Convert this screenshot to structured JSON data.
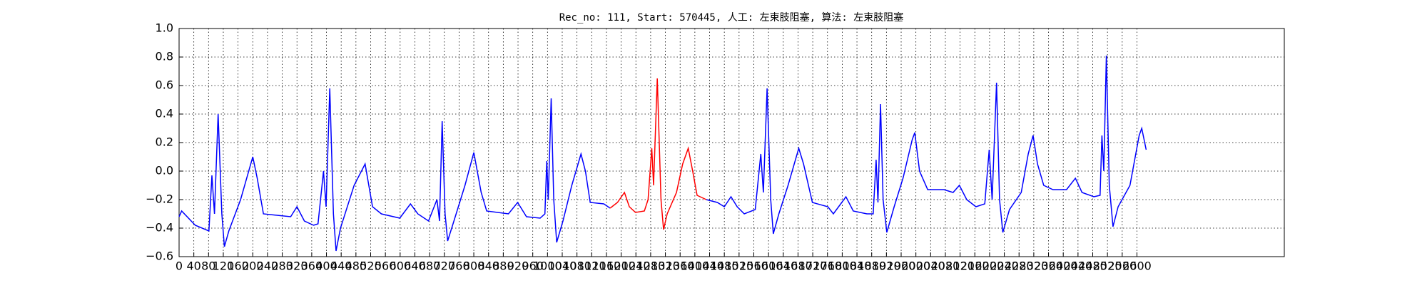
{
  "chart_data": {
    "type": "line",
    "title": "Rec_no: 111, Start: 570445, 人工: 左束肢阻塞, 算法: 左束肢阻塞",
    "xlim": [
      0,
      3000
    ],
    "ylim": [
      -0.6,
      1.0
    ],
    "xticks": [
      0,
      40,
      80,
      120,
      160,
      200,
      240,
      280,
      320,
      360,
      400,
      440,
      480,
      520,
      560,
      600,
      640,
      680,
      720,
      760,
      800,
      840,
      880,
      920,
      960,
      1000,
      1040,
      1080,
      1120,
      1160,
      1200,
      1240,
      1280,
      1320,
      1360,
      1400,
      1440,
      1480,
      1520,
      1560,
      1600,
      1640,
      1680,
      1720,
      1760,
      1800,
      1840,
      1880,
      1920,
      1960,
      2000,
      2040,
      2080,
      2120,
      2160,
      2200,
      2240,
      2280,
      2320,
      2360,
      2400,
      2440,
      2480,
      2520,
      2560,
      2600
    ],
    "yticks": [
      {
        "value": -0.6,
        "label": "−0.6"
      },
      {
        "value": -0.4,
        "label": "−0.4"
      },
      {
        "value": -0.2,
        "label": "−0.2"
      },
      {
        "value": 0,
        "label": "0.0"
      },
      0.2,
      0.4,
      0.6,
      0.8,
      {
        "value": 1,
        "label": "1.0"
      }
    ],
    "grid": true,
    "series": [
      {
        "color": "#0000ff",
        "x": [
          0,
          7,
          44,
          81,
          89,
          96,
          106,
          116,
          123,
          135,
          167,
          200,
          212,
          229,
          303,
          320,
          340,
          365,
          377,
          392,
          399,
          409,
          419,
          426,
          438,
          475,
          505,
          525,
          549,
          599,
          628,
          648,
          677,
          700,
          707,
          714,
          722,
          729,
          746,
          776,
          800,
          820,
          835,
          894,
          919,
          943,
          980,
          993,
          998,
          1002,
          1010,
          1017,
          1025,
          1042,
          1066,
          1091,
          1103,
          1116,
          1153,
          1170,
          1300,
          1431,
          1461,
          1480,
          1498,
          1515,
          1534,
          1564,
          1579,
          1586,
          1596,
          1606,
          1613,
          1628,
          1653,
          1682,
          1695,
          1719,
          1761,
          1776,
          1810,
          1830,
          1867,
          1884,
          1892,
          1897,
          1904,
          1911,
          1921,
          1941,
          1965,
          1990,
          1997,
          2010,
          2032,
          2076,
          2101,
          2118,
          2138,
          2163,
          2187,
          2199,
          2207,
          2219,
          2227,
          2236,
          2254,
          2286,
          2305,
          2318,
          2330,
          2347,
          2372,
          2409,
          2433,
          2451,
          2483,
          2500,
          2505,
          2510,
          2517,
          2525,
          2535,
          2549,
          2581,
          2606,
          2613,
          2625
        ],
        "values": [
          -0.32,
          -0.28,
          -0.38,
          -0.42,
          -0.03,
          -0.3,
          0.4,
          -0.3,
          -0.53,
          -0.42,
          -0.2,
          0.1,
          -0.05,
          -0.3,
          -0.32,
          -0.25,
          -0.35,
          -0.38,
          -0.37,
          0.0,
          -0.25,
          0.58,
          -0.3,
          -0.56,
          -0.4,
          -0.1,
          0.05,
          -0.25,
          -0.3,
          -0.33,
          -0.23,
          -0.3,
          -0.35,
          -0.2,
          -0.35,
          0.35,
          -0.3,
          -0.49,
          -0.35,
          -0.1,
          0.13,
          -0.15,
          -0.28,
          -0.3,
          -0.22,
          -0.32,
          -0.33,
          -0.3,
          0.07,
          -0.2,
          0.51,
          -0.2,
          -0.5,
          -0.35,
          -0.1,
          0.12,
          0.0,
          -0.22,
          -0.23,
          -0.26,
          null,
          -0.2,
          -0.22,
          -0.25,
          -0.18,
          -0.25,
          -0.3,
          -0.27,
          0.12,
          -0.15,
          0.58,
          -0.2,
          -0.44,
          -0.3,
          -0.1,
          0.16,
          0.05,
          -0.22,
          -0.25,
          -0.3,
          -0.18,
          -0.28,
          -0.3,
          -0.3,
          0.08,
          -0.22,
          0.47,
          -0.2,
          -0.43,
          -0.25,
          -0.05,
          0.22,
          0.27,
          0.0,
          -0.13,
          -0.13,
          -0.15,
          -0.1,
          -0.2,
          -0.25,
          -0.23,
          0.15,
          -0.2,
          0.62,
          -0.2,
          -0.43,
          -0.27,
          -0.15,
          0.12,
          0.25,
          0.05,
          -0.1,
          -0.13,
          -0.13,
          -0.05,
          -0.15,
          -0.18,
          -0.17,
          0.25,
          0.0,
          0.81,
          -0.1,
          -0.39,
          -0.25,
          -0.1,
          0.25,
          0.3,
          0.15
        ]
      },
      {
        "color": "#ff0000",
        "x": [
          1170,
          1190,
          1209,
          1222,
          1239,
          1263,
          1273,
          1283,
          1288,
          1298,
          1308,
          1315,
          1325,
          1350,
          1367,
          1382,
          1394,
          1406,
          1431
        ],
        "values": [
          -0.26,
          -0.22,
          -0.15,
          -0.25,
          -0.29,
          -0.28,
          -0.2,
          0.16,
          -0.1,
          0.65,
          -0.2,
          -0.41,
          -0.3,
          -0.15,
          0.05,
          0.16,
          0.0,
          -0.17,
          -0.2
        ]
      }
    ]
  }
}
